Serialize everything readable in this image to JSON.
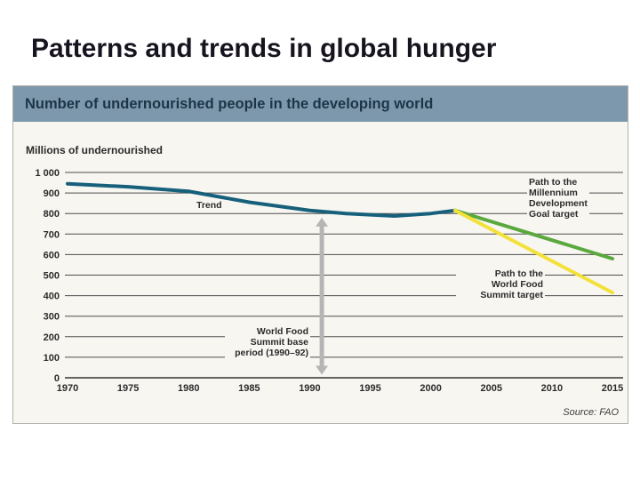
{
  "page": {
    "title": "Patterns and trends in global hunger"
  },
  "chart": {
    "header": "Number of undernourished people in the developing world",
    "axis_title": "Millions of undernourished",
    "source": "Source: FAO",
    "annotations": {
      "trend": "Trend",
      "mdg": "Path to the\nMillennium\nDevelopment\nGoal target",
      "wfs": "Path to the\nWorld Food\nSummit target",
      "base_period": "World Food\nSummit base\nperiod (1990–92)"
    }
  },
  "chart_data": {
    "type": "line",
    "title": "Number of undernourished people in the developing world",
    "xlabel": "",
    "ylabel": "Millions of undernourished",
    "ylim": [
      0,
      1000
    ],
    "xlim": [
      1970,
      2015
    ],
    "grid": true,
    "legend_position": "inline-annotations",
    "y_ticks": [
      {
        "label": "1 000",
        "value": 1000
      },
      {
        "label": "900",
        "value": 900
      },
      {
        "label": "800",
        "value": 800
      },
      {
        "label": "700",
        "value": 700
      },
      {
        "label": "600",
        "value": 600
      },
      {
        "label": "500",
        "value": 500
      },
      {
        "label": "400",
        "value": 400
      },
      {
        "label": "300",
        "value": 300
      },
      {
        "label": "200",
        "value": 200
      },
      {
        "label": "100",
        "value": 100
      },
      {
        "label": "0",
        "value": 0
      }
    ],
    "x_ticks": [
      1970,
      1975,
      1980,
      1985,
      1990,
      1995,
      2000,
      2005,
      2010,
      2015
    ],
    "series": [
      {
        "id": "trend",
        "name": "Trend",
        "color": "#16607c",
        "x": [
          1970,
          1975,
          1980,
          1985,
          1990,
          1993,
          1997,
          2000,
          2002
        ],
        "values": [
          945,
          930,
          908,
          855,
          815,
          800,
          788,
          800,
          815
        ]
      },
      {
        "id": "mdg-path",
        "name": "Path to the Millennium Development Goal target",
        "color": "#5aa83e",
        "x": [
          2002,
          2015
        ],
        "values": [
          815,
          580
        ]
      },
      {
        "id": "wfs-path",
        "name": "Path to the World Food Summit target",
        "color": "#f3e13a",
        "x": [
          2002,
          2015
        ],
        "values": [
          815,
          415
        ]
      }
    ],
    "base_period_marker": {
      "x": 1991,
      "from": 780,
      "to": 15,
      "color": "#b5b5b5",
      "label": "World Food Summit base period (1990–92)"
    },
    "source": "Source: FAO"
  }
}
